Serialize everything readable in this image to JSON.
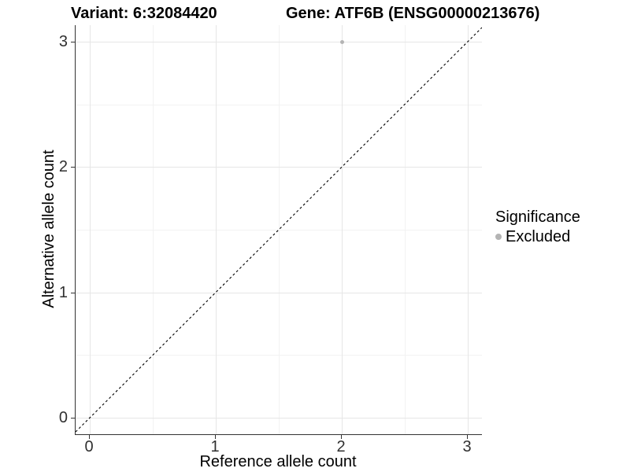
{
  "title": {
    "variant": "Variant: 6:32084420",
    "gene": "Gene: ATF6B (ENSG00000213676)"
  },
  "legend": {
    "title": "Significance",
    "items": [
      {
        "label": "Excluded",
        "color": "#b4b4b4"
      }
    ]
  },
  "colors": {
    "axis_line": "#333333",
    "grid_major": "#e6e6e6",
    "grid_minor": "#f2f2f2",
    "point": "#b4b4b4",
    "reference_line": "#000000"
  },
  "chart_data": {
    "type": "scatter",
    "title": "Variant: 6:32084420   Gene: ATF6B (ENSG00000213676)",
    "xlabel": "Reference allele count",
    "ylabel": "Alternative allele count",
    "xlim": [
      -0.14,
      3.14
    ],
    "ylim": [
      -0.14,
      3.14
    ],
    "x_ticks": [
      0,
      1,
      2,
      3
    ],
    "y_ticks": [
      0,
      1,
      2,
      3
    ],
    "x_minor": [
      0.5,
      1.5,
      2.5
    ],
    "y_minor": [
      0.5,
      1.5,
      2.5
    ],
    "grid": true,
    "legend_position": "right",
    "reference_line": {
      "slope": 1,
      "intercept": 0,
      "style": "dashed",
      "color": "#000000"
    },
    "series": [
      {
        "name": "Excluded",
        "color": "#b4b4b4",
        "points": [
          {
            "x": 2,
            "y": 3
          }
        ]
      }
    ]
  }
}
